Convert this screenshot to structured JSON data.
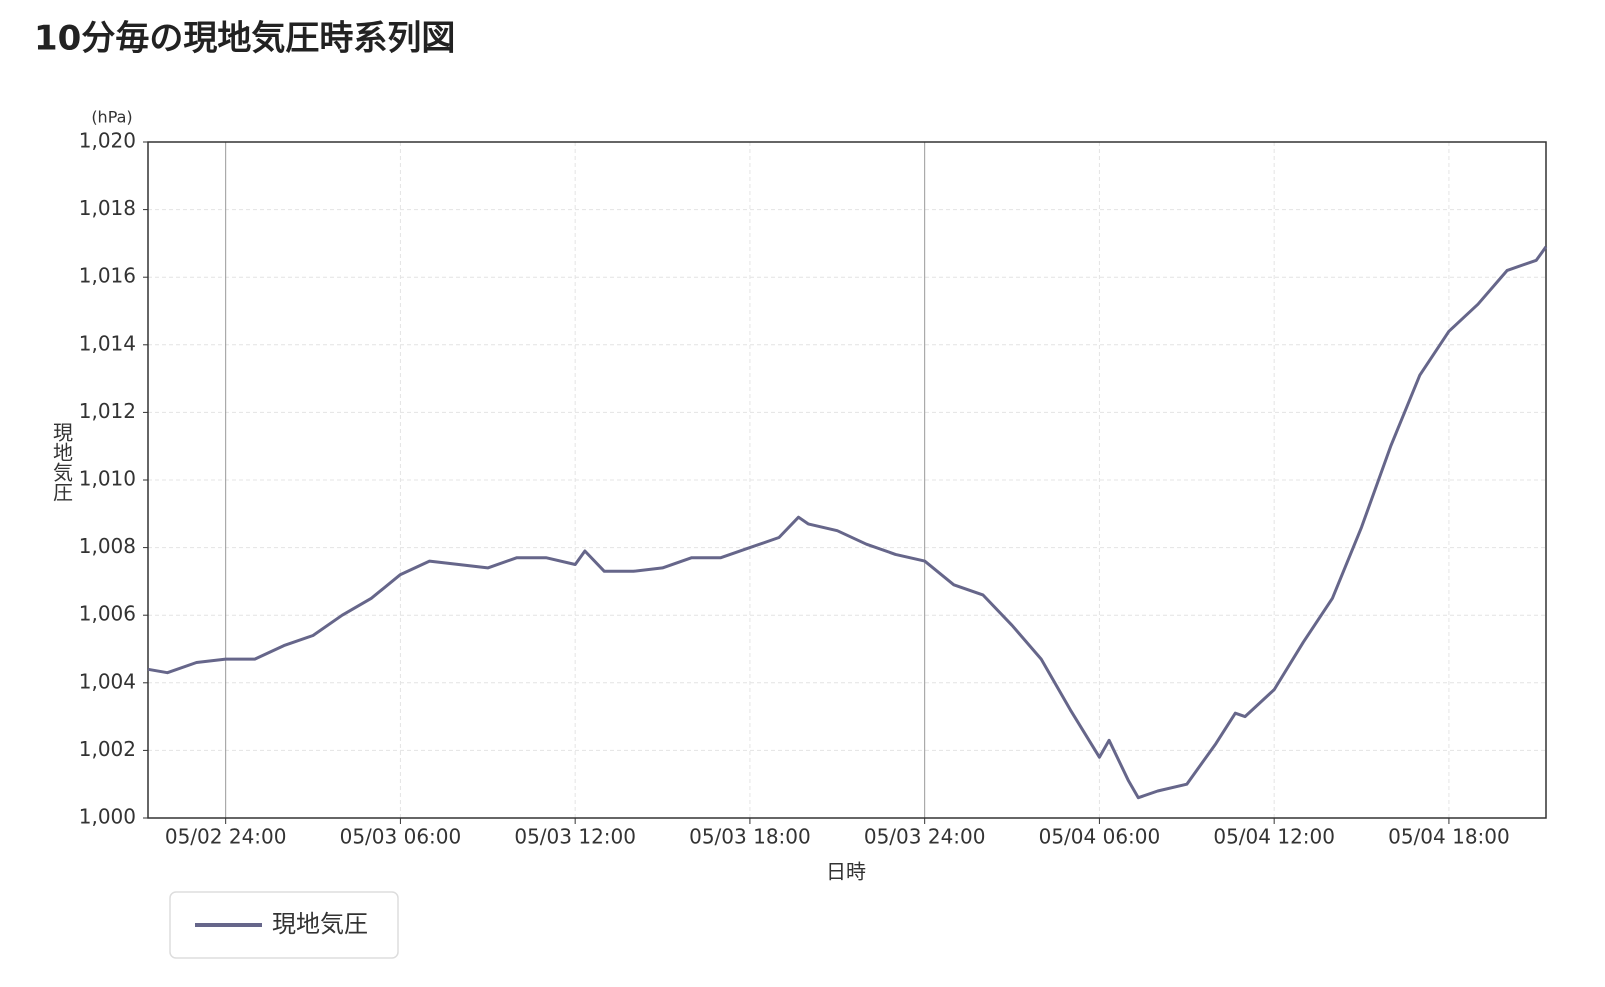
{
  "chart_data": {
    "type": "line",
    "title": "10分毎の現地気圧時系列図",
    "y_label": "現地気圧",
    "y_unit": "(hPa)",
    "x_label": "日時",
    "x": [
      "05/02 21:20",
      "05/02 22:00",
      "05/02 23:00",
      "05/02 24:00",
      "05/03 01:00",
      "05/03 02:00",
      "05/03 03:00",
      "05/03 04:00",
      "05/03 05:00",
      "05/03 06:00",
      "05/03 07:00",
      "05/03 08:00",
      "05/03 09:00",
      "05/03 10:00",
      "05/03 11:00",
      "05/03 12:00",
      "05/03 12:20",
      "05/03 13:00",
      "05/03 14:00",
      "05/03 15:00",
      "05/03 16:00",
      "05/03 17:00",
      "05/03 18:00",
      "05/03 19:00",
      "05/03 19:40",
      "05/03 20:00",
      "05/03 21:00",
      "05/03 22:00",
      "05/03 23:00",
      "05/03 24:00",
      "05/04 01:00",
      "05/04 02:00",
      "05/04 03:00",
      "05/04 04:00",
      "05/04 05:00",
      "05/04 06:00",
      "05/04 06:20",
      "05/04 07:00",
      "05/04 07:20",
      "05/04 08:00",
      "05/04 09:00",
      "05/04 10:00",
      "05/04 10:40",
      "05/04 11:00",
      "05/04 12:00",
      "05/04 13:00",
      "05/04 14:00",
      "05/04 15:00",
      "05/04 16:00",
      "05/04 17:00",
      "05/04 18:00",
      "05/04 19:00",
      "05/04 20:00",
      "05/04 21:00",
      "05/04 21:20"
    ],
    "series": [
      {
        "name": "現地気圧",
        "color": "#66668a",
        "values": [
          1004.4,
          1004.3,
          1004.6,
          1004.7,
          1004.7,
          1005.1,
          1005.4,
          1006.0,
          1006.5,
          1007.2,
          1007.6,
          1007.5,
          1007.4,
          1007.7,
          1007.7,
          1007.5,
          1007.9,
          1007.3,
          1007.3,
          1007.4,
          1007.7,
          1007.7,
          1008.0,
          1008.3,
          1008.9,
          1008.7,
          1008.5,
          1008.1,
          1007.8,
          1007.6,
          1006.9,
          1006.6,
          1005.7,
          1004.7,
          1003.2,
          1001.8,
          1002.3,
          1001.1,
          1000.6,
          1000.8,
          1001.0,
          1002.2,
          1003.1,
          1003.0,
          1003.8,
          1005.2,
          1006.5,
          1008.6,
          1011.0,
          1013.1,
          1014.4,
          1015.2,
          1016.2,
          1016.5,
          1016.9
        ]
      }
    ],
    "xlim": [
      "05/02 21:20",
      "05/04 21:20"
    ],
    "xticks": [
      "05/02 24:00",
      "05/03 06:00",
      "05/03 12:00",
      "05/03 18:00",
      "05/03 24:00",
      "05/04 06:00",
      "05/04 12:00",
      "05/04 18:00"
    ],
    "ylim": [
      1000,
      1020
    ],
    "yticks": [
      {
        "value": 1000,
        "label": "1,000"
      },
      {
        "value": 1002,
        "label": "1,002"
      },
      {
        "value": 1004,
        "label": "1,004"
      },
      {
        "value": 1006,
        "label": "1,006"
      },
      {
        "value": 1008,
        "label": "1,008"
      },
      {
        "value": 1010,
        "label": "1,010"
      },
      {
        "value": 1012,
        "label": "1,012"
      },
      {
        "value": 1014,
        "label": "1,014"
      },
      {
        "value": 1016,
        "label": "1,016"
      },
      {
        "value": 1018,
        "label": "1,018"
      },
      {
        "value": 1020,
        "label": "1,020"
      }
    ],
    "grid": true,
    "legend": "bottom-left"
  }
}
